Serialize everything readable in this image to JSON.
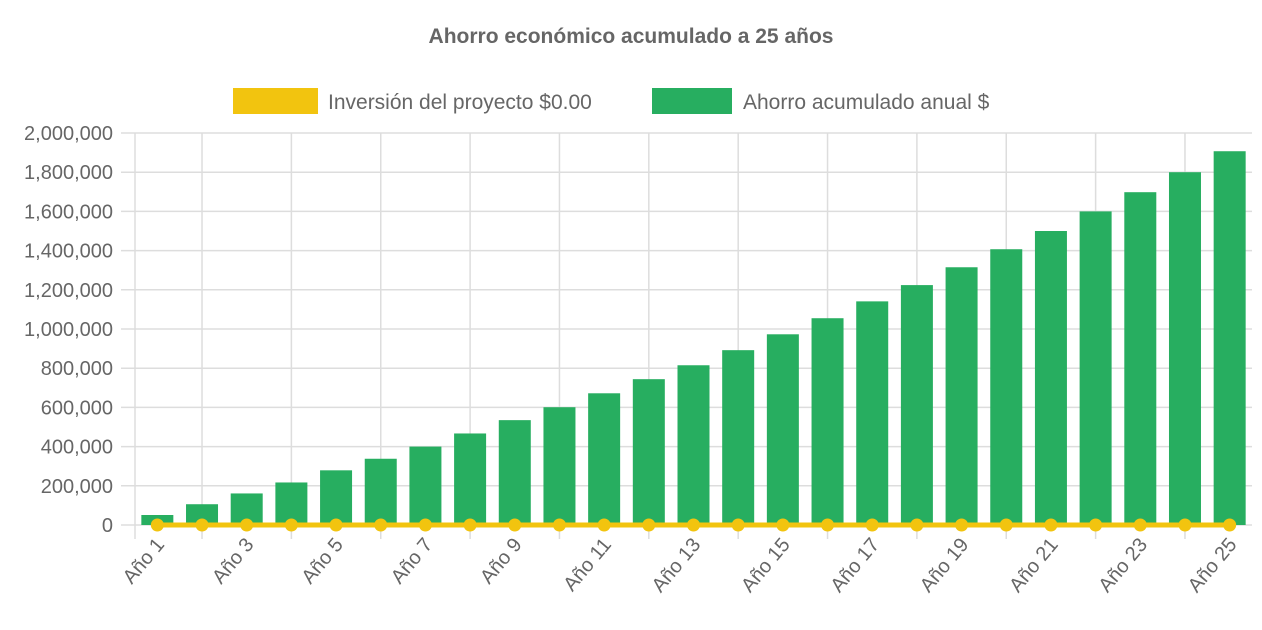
{
  "chart_data": {
    "type": "bar",
    "title": "Ahorro económico acumulado a 25 años",
    "categories": [
      "Año 1",
      "Año 2",
      "Año 3",
      "Año 4",
      "Año 5",
      "Año 6",
      "Año 7",
      "Año 8",
      "Año 9",
      "Año 10",
      "Año 11",
      "Año 12",
      "Año 13",
      "Año 14",
      "Año 15",
      "Año 16",
      "Año 17",
      "Año 18",
      "Año 19",
      "Año 20",
      "Año 21",
      "Año 22",
      "Año 23",
      "Año 24",
      "Año 25"
    ],
    "series": [
      {
        "name": "Inversión del proyecto $0.00",
        "type": "line",
        "color": "#f2c40f",
        "values": [
          0,
          0,
          0,
          0,
          0,
          0,
          0,
          0,
          0,
          0,
          0,
          0,
          0,
          0,
          0,
          0,
          0,
          0,
          0,
          0,
          0,
          0,
          0,
          0,
          0
        ]
      },
      {
        "name": "Ahorro acumulado anual $",
        "type": "bar",
        "color": "#27ae60",
        "values": [
          51000,
          106000,
          161000,
          217000,
          279000,
          338000,
          400000,
          467000,
          535000,
          601000,
          672000,
          744000,
          815000,
          892000,
          973000,
          1055000,
          1141000,
          1224000,
          1315000,
          1407000,
          1500000,
          1600000,
          1698000,
          1800000,
          1907000
        ]
      }
    ],
    "ylim": [
      0,
      2000000
    ],
    "yticks": [
      "0",
      "200,000",
      "400,000",
      "600,000",
      "800,000",
      "1,000,000",
      "1,200,000",
      "1,400,000",
      "1,600,000",
      "1,800,000",
      "2,000,000"
    ],
    "xticks_shown": [
      "Año 1",
      "Año 3",
      "Año 5",
      "Año 7",
      "Año 9",
      "Año 11",
      "Año 13",
      "Año 15",
      "Año 17",
      "Año 19",
      "Año 21",
      "Año 23",
      "Año 25"
    ],
    "grid": true,
    "legend": "top"
  }
}
